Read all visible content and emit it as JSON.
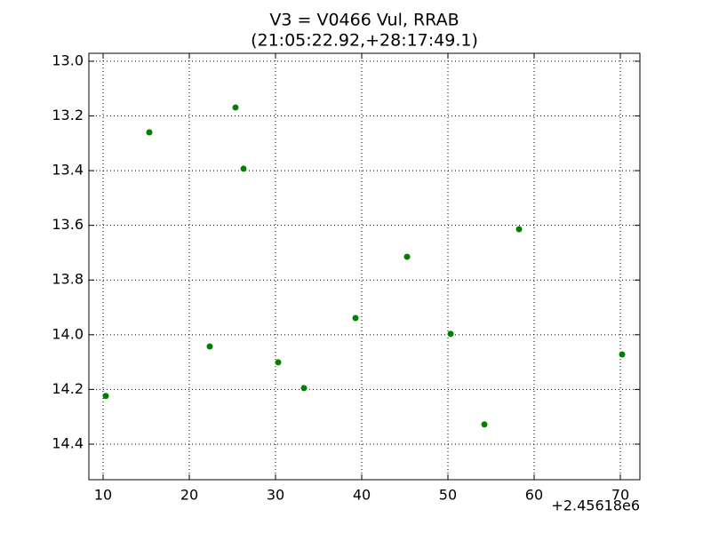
{
  "chart_data": {
    "type": "scatter",
    "title": "V3 = V0466 Vul, RRAB",
    "subtitle": "(21:05:22.92,+28:17:49.1)",
    "x_offset_label": "+2.45618e6",
    "x": [
      10.31,
      15.36,
      22.37,
      25.36,
      26.29,
      30.31,
      33.3,
      39.28,
      45.26,
      50.31,
      54.23,
      58.25,
      70.21
    ],
    "values": [
      14.224,
      13.26,
      14.043,
      13.169,
      13.393,
      14.101,
      14.195,
      13.939,
      13.715,
      13.997,
      14.328,
      13.614,
      14.072
    ],
    "color": "#007f00",
    "xlim": [
      8.35,
      72.27
    ],
    "xticks": [
      10,
      20,
      30,
      40,
      50,
      60,
      70
    ],
    "ylim": [
      12.971,
      14.53
    ],
    "y_inverted": true,
    "yticks": [
      {
        "value": 13,
        "label": "13.0"
      },
      13.2,
      13.4,
      13.6,
      13.8,
      {
        "value": 14,
        "label": "14.0"
      },
      14.2,
      14.4
    ],
    "grid": true
  }
}
